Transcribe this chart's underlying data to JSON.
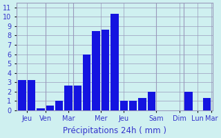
{
  "bar_values": [
    3.2,
    3.2,
    0.2,
    0.5,
    1.0,
    2.6,
    2.6,
    6.0,
    8.5,
    8.6,
    10.3,
    1.0,
    1.0,
    1.3,
    2.0,
    0.0,
    0.0,
    0.0,
    2.0,
    0.0,
    1.3
  ],
  "n_bars": 21,
  "xlabel": "Précipitations 24h ( mm )",
  "ylim_max": 11.5,
  "ytick_max": 11,
  "bar_color": "#1414e0",
  "background_color": "#cff0f0",
  "grid_color": "#9999bb",
  "text_color": "#3333cc",
  "vlines": [
    2.5,
    5.5,
    14.5,
    17.5
  ],
  "xtick_positions": [
    0.5,
    2.5,
    5.0,
    8.5,
    11.0,
    14.5,
    17.0,
    19.0,
    20.5
  ],
  "xtick_labels": [
    "Jeu",
    "Ven",
    "Mar",
    "Mer",
    "Jeu",
    "Sam",
    "Dim",
    "Lun",
    "Mar"
  ],
  "xlabel_fontsize": 8.5,
  "tick_fontsize": 7
}
